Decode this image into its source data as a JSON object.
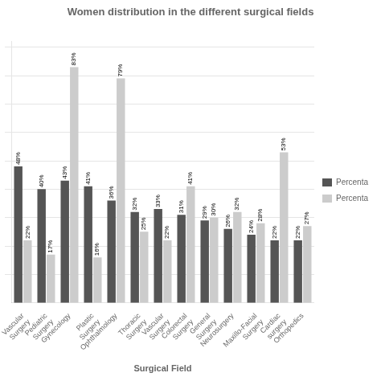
{
  "chart_data": {
    "type": "bar",
    "title": "Women distribution in the different surgical fields",
    "xlabel": "Surgical Field",
    "categories": [
      "Vascular\nSurgery",
      "Pediatric\nSurgery",
      "Gynecology",
      "Plastic\nSurgery",
      "Ophthalmology",
      "Thoracic\nSurgery",
      "Vascular\nSurgery",
      "Colorectal\nSurgery",
      "General\nSurgery",
      "Neurosurgery",
      "Maxillo-Facial\nSurgery",
      "Cardiac\nsurgery",
      "Orthopedics"
    ],
    "series": [
      {
        "name": "Percenta",
        "color": "#555555",
        "values": [
          48,
          40,
          43,
          41,
          36,
          32,
          33,
          31,
          29,
          26,
          24,
          22,
          22
        ],
        "value_labels": [
          "48%",
          "40%",
          "43%",
          "41%",
          "36%",
          "32%",
          "33%",
          "31%",
          "29%",
          "26%",
          "24%",
          "22%",
          "22%"
        ]
      },
      {
        "name": "Percenta",
        "color": "#cccccc",
        "values": [
          22,
          17,
          83,
          16,
          79,
          25,
          22,
          41,
          30,
          32,
          28,
          53,
          27
        ],
        "value_labels": [
          "22%",
          "17%",
          "83%",
          "16%",
          "79%",
          "25%",
          "22%",
          "41%",
          "30%",
          "32%",
          "28%",
          "53%",
          "27%"
        ]
      }
    ],
    "ylim": [
      0,
      92
    ],
    "yticks": [
      10,
      20,
      30,
      40,
      50,
      60,
      70,
      80,
      90
    ],
    "grid": true,
    "tick_labels": "x",
    "legend": "right",
    "data_labels": true
  }
}
